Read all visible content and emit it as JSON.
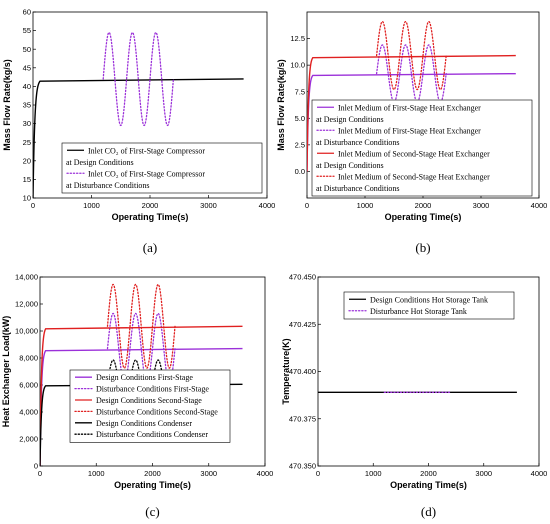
{
  "chart_data": [
    {
      "panel": "(a)",
      "type": "line",
      "xlabel": "Operating Time(s)",
      "ylabel": "Mass Flow Rate(kg/s)",
      "xlim": [
        0,
        4000
      ],
      "ylim": [
        10,
        60
      ],
      "xticks": [
        0,
        1000,
        2000,
        3000,
        4000
      ],
      "yticks": [
        10,
        15,
        20,
        25,
        30,
        35,
        40,
        45,
        50,
        55,
        60
      ],
      "legend_placement": "bottom-right",
      "legend": [
        "Inlet CO₂ of First-Stage Compressor at Design Conditions",
        "Inlet CO₂ of First-Stage Compressor at Disturbance Conditions"
      ],
      "series": [
        {
          "name": "Inlet CO₂ of First-Stage Compressor at Design Conditions",
          "color": "#000000",
          "style": "solid",
          "steady": 42,
          "start": 10,
          "rise_end": 120,
          "t_end": 3600
        },
        {
          "name": "Inlet CO₂ of First-Stage Compressor at Disturbance Conditions",
          "color": "#9b30d9",
          "style": "dot",
          "base": 42,
          "amp": 12.5,
          "period": 400,
          "t_start": 1200,
          "t_end": 2400
        }
      ]
    },
    {
      "panel": "(b)",
      "type": "line",
      "xlabel": "Operating Time(s)",
      "ylabel": "Mass Flow Rate(kg/s)",
      "xlim": [
        0,
        4000
      ],
      "ylim": [
        -2.5,
        15
      ],
      "xticks": [
        0,
        1000,
        2000,
        3000,
        4000
      ],
      "yticks": [
        0.0,
        2.5,
        5.0,
        7.5,
        10.0,
        12.5
      ],
      "ytick_labels": [
        "0.0",
        "2.5",
        "5.0",
        "7.5",
        "10.0",
        "12.5"
      ],
      "legend_placement": "bottom-right",
      "legend": [
        "Inlet Medium of First-Stage Heat Exchanger at Design Conditions",
        "Inlet Medium of First-Stage Heat Exchanger at Disturbance Conditions",
        "Inlet Medium of Second-Stage Heat Exchanger at Design Conditions",
        "Inlet Medium of Second-Stage Heat Exchanger at Disturbance Conditions"
      ],
      "series": [
        {
          "name": "Inlet Medium of First-Stage Heat Exchanger at Design Conditions",
          "color": "#9b30d9",
          "style": "solid",
          "steady": 9.2,
          "start": 0,
          "rise_end": 100,
          "t_end": 3600
        },
        {
          "name": "Inlet Medium of First-Stage Heat Exchanger at Disturbance Conditions",
          "color": "#9b30d9",
          "style": "dot",
          "base": 9.2,
          "amp": 2.7,
          "period": 400,
          "t_start": 1200,
          "t_end": 2400
        },
        {
          "name": "Inlet Medium of Second-Stage Heat Exchanger at Design Conditions",
          "color": "#e02020",
          "style": "solid",
          "steady": 10.9,
          "start": 0,
          "rise_end": 100,
          "t_end": 3600
        },
        {
          "name": "Inlet Medium of Second-Stage Heat Exchanger at Disturbance Conditions",
          "color": "#e02020",
          "style": "dot",
          "base": 10.9,
          "amp": 3.2,
          "period": 400,
          "t_start": 1200,
          "t_end": 2400
        }
      ]
    },
    {
      "panel": "(c)",
      "type": "line",
      "xlabel": "Operating Time(s)",
      "ylabel": "Heat Exchanger Load(kW)",
      "xlim": [
        0,
        4000
      ],
      "ylim": [
        0,
        14000
      ],
      "xticks": [
        0,
        1000,
        2000,
        3000,
        4000
      ],
      "yticks": [
        0,
        2000,
        4000,
        6000,
        8000,
        10000,
        12000,
        14000
      ],
      "ytick_labels": [
        "0",
        "2,000",
        "4,000",
        "6,000",
        "8,000",
        "10,000",
        "12,000",
        "14,000"
      ],
      "legend_placement": "bottom-left",
      "legend": [
        "Design Conditions First-Stage",
        "Disturbance Conditions First-Stage",
        "Design Conditions Second-Stage",
        "Disturbance Conditions Second-Stage",
        "Design Conditions Condenser",
        "Disturbance Conditions Condenser"
      ],
      "series": [
        {
          "name": "Design Conditions First-Stage",
          "color": "#9b30d9",
          "style": "solid",
          "steady": 8700,
          "start": 0,
          "rise_end": 100,
          "t_end": 3600
        },
        {
          "name": "Disturbance Conditions First-Stage",
          "color": "#9b30d9",
          "style": "dot",
          "base": 8700,
          "amp": 2600,
          "period": 400,
          "t_start": 1200,
          "t_end": 2400
        },
        {
          "name": "Design Conditions Second-Stage",
          "color": "#e02020",
          "style": "solid",
          "steady": 10350,
          "start": 0,
          "rise_end": 100,
          "t_end": 3600
        },
        {
          "name": "Disturbance Conditions Second-Stage",
          "color": "#e02020",
          "style": "dot",
          "base": 10350,
          "amp": 3100,
          "period": 400,
          "t_start": 1200,
          "t_end": 2400
        },
        {
          "name": "Design Conditions Condenser",
          "color": "#000000",
          "style": "solid",
          "steady": 6050,
          "start": 0,
          "rise_end": 100,
          "t_end": 3600
        },
        {
          "name": "Disturbance Conditions Condenser",
          "color": "#000000",
          "style": "dot",
          "base": 6050,
          "amp": 1800,
          "period": 400,
          "t_start": 1200,
          "t_end": 2400
        }
      ]
    },
    {
      "panel": "(d)",
      "type": "line",
      "xlabel": "Operating Time(s)",
      "ylabel": "Temperature(K)",
      "xlim": [
        0,
        4000
      ],
      "ylim": [
        470.35,
        470.45
      ],
      "xticks": [
        0,
        1000,
        2000,
        3000,
        4000
      ],
      "yticks": [
        470.35,
        470.375,
        470.4,
        470.425,
        470.45
      ],
      "ytick_labels": [
        "470.350",
        "470.375",
        "470.400",
        "470.425",
        "470.450"
      ],
      "legend_placement": "top-left",
      "legend": [
        "Design Conditions Hot Storage Tank",
        "Disturbance Hot Storage Tank"
      ],
      "series": [
        {
          "name": "Design Conditions Hot Storage Tank",
          "color": "#000000",
          "style": "solid",
          "steady": 470.389,
          "start": 470.389,
          "rise_end": 0,
          "t_end": 3600
        },
        {
          "name": "Disturbance Hot Storage Tank",
          "color": "#9b30d9",
          "style": "dot",
          "base": 470.389,
          "amp": 0,
          "period": 400,
          "t_start": 1200,
          "t_end": 2400
        }
      ]
    }
  ]
}
